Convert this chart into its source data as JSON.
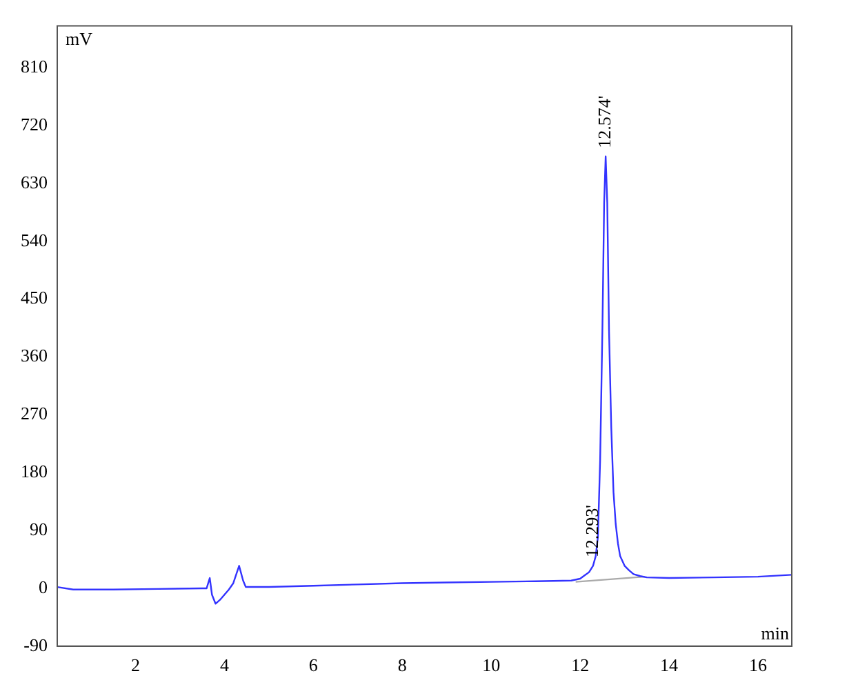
{
  "chart_data": {
    "type": "line",
    "xlabel": "min",
    "ylabel": "mV",
    "xlim": [
      0.24,
      16.76
    ],
    "ylim": [
      -90,
      875
    ],
    "xticks": [
      2,
      4,
      6,
      8,
      10,
      12,
      14,
      16
    ],
    "yticks": [
      -90,
      0,
      90,
      180,
      270,
      360,
      450,
      540,
      630,
      720,
      810
    ],
    "grid": false,
    "legend": false,
    "marker": "none",
    "line_style": "solid",
    "series": [
      {
        "color": "#3333ff",
        "x": [
          0.24,
          0.6,
          1.5,
          2.5,
          3.5,
          3.6,
          3.67,
          3.72,
          3.8,
          3.9,
          4.0,
          4.1,
          4.2,
          4.33,
          4.42,
          4.48,
          5.0,
          6.0,
          7.0,
          8.0,
          9.0,
          10.0,
          11.0,
          11.8,
          12.0,
          12.1,
          12.2,
          12.29,
          12.35,
          12.4,
          12.45,
          12.5,
          12.54,
          12.574,
          12.61,
          12.65,
          12.7,
          12.75,
          12.8,
          12.85,
          12.9,
          13.0,
          13.1,
          13.2,
          13.35,
          13.5,
          14.0,
          15.0,
          16.0,
          16.76
        ],
        "values": [
          2,
          -2,
          -2,
          -1,
          0,
          0,
          16,
          -10,
          -24,
          -18,
          -10,
          -2,
          8,
          35,
          12,
          2,
          2,
          4,
          6,
          8,
          9,
          10,
          11,
          12,
          15,
          20,
          25,
          35,
          50,
          80,
          200,
          400,
          600,
          672,
          600,
          400,
          250,
          150,
          100,
          70,
          50,
          35,
          28,
          22,
          19,
          17,
          16,
          17,
          18,
          21
        ]
      },
      {
        "color": "#aaaaaa",
        "x": [
          11.9,
          13.45
        ],
        "values": [
          10,
          18
        ]
      }
    ],
    "annotations": [
      {
        "text": "12.574'",
        "x": 12.574,
        "y": 672
      },
      {
        "text": "12.293'",
        "x": 12.293,
        "y": 35
      }
    ]
  }
}
